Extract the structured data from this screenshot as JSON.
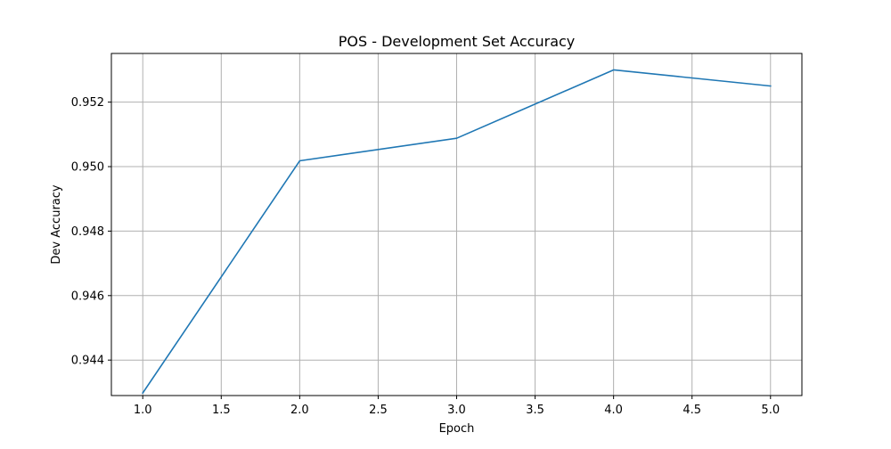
{
  "chart_data": {
    "type": "line",
    "title": "POS - Development Set Accuracy",
    "xlabel": "Epoch",
    "ylabel": "Dev Accuracy",
    "xlim": [
      0.8,
      5.2
    ],
    "ylim": [
      0.9429,
      0.95351
    ],
    "xticks": [
      "1.0",
      "1.5",
      "2.0",
      "2.5",
      "3.0",
      "3.5",
      "4.0",
      "4.5",
      "5.0"
    ],
    "yticks": [
      "0.944",
      "0.946",
      "0.948",
      "0.950",
      "0.952"
    ],
    "grid": true,
    "series": [
      {
        "x": [
          1,
          2,
          3,
          4,
          5
        ],
        "y": [
          0.94298,
          0.95018,
          0.95088,
          0.953,
          0.9525
        ],
        "color": "#1f77b4"
      }
    ]
  }
}
